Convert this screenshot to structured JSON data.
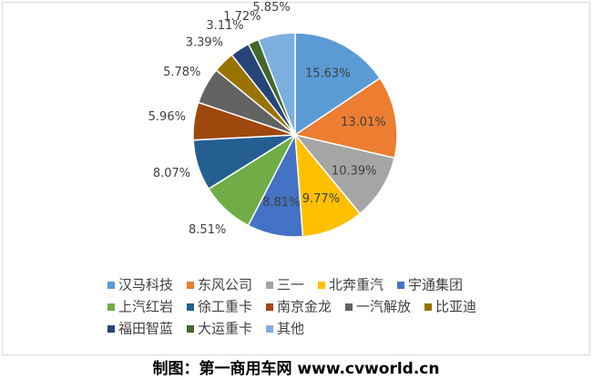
{
  "chart_data": {
    "type": "pie",
    "categories": [
      "汉马科技",
      "东风公司",
      "三一",
      "北奔重汽",
      "宇通集团",
      "上汽红岩",
      "徐工重卡",
      "南京金龙",
      "一汽解放",
      "比亚迪",
      "福田智蓝",
      "大运重卡",
      "其他"
    ],
    "values": [
      15.63,
      13.01,
      10.39,
      9.77,
      8.81,
      8.51,
      8.07,
      5.96,
      5.78,
      3.39,
      3.11,
      1.72,
      5.85
    ],
    "value_labels": [
      "15.63%",
      "13.01%",
      "10.39%",
      "9.77%",
      "8.81%",
      "8.51%",
      "8.07%",
      "5.96%",
      "5.78%",
      "3.39%",
      "3.11%",
      "1.72%",
      "5.85%"
    ],
    "colors": [
      "#5B9BD5",
      "#ED7D31",
      "#A5A5A5",
      "#FFC000",
      "#4472C4",
      "#70AD47",
      "#255E91",
      "#9E480E",
      "#636363",
      "#997300",
      "#264478",
      "#43682B",
      "#7CAFDD"
    ],
    "legend": "bottom"
  },
  "caption": "制图：第一商用车网 www.cvworld.cn"
}
